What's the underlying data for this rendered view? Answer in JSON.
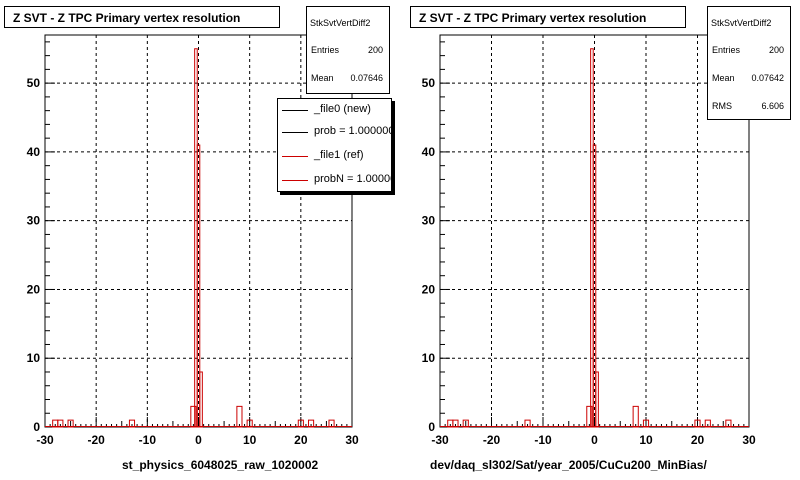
{
  "chart_data": [
    {
      "type": "histogram",
      "title": "Z SVT - Z TPC Primary vertex resolution",
      "xlabel": "st_physics_6048025_raw_1020002",
      "xlim": [
        -30,
        30
      ],
      "ylim": [
        0,
        57
      ],
      "xticks": [
        -30,
        -20,
        -10,
        0,
        10,
        20,
        30
      ],
      "yticks": [
        0,
        10,
        20,
        30,
        40,
        50
      ],
      "grid": true,
      "bin_width": 1,
      "series": [
        {
          "name": "_file1 (ref)",
          "color": "#cc0000",
          "bins": [
            {
              "x": -28,
              "y": 1
            },
            {
              "x": -27,
              "y": 1
            },
            {
              "x": -25,
              "y": 1
            },
            {
              "x": -13,
              "y": 1
            },
            {
              "x": -1,
              "y": 3
            },
            {
              "x": -0.5,
              "y": 55
            },
            {
              "x": 0,
              "y": 41
            },
            {
              "x": 0.5,
              "y": 8
            },
            {
              "x": 8,
              "y": 3
            },
            {
              "x": 10,
              "y": 1
            },
            {
              "x": 20,
              "y": 1
            },
            {
              "x": 22,
              "y": 1
            },
            {
              "x": 26,
              "y": 1
            }
          ]
        }
      ],
      "stats": {
        "name": "StkSvtVertDiff2",
        "entries_label": "Entries",
        "entries": "200",
        "mean_label": "Mean",
        "mean": "0.07646"
      },
      "legend": [
        {
          "label": "_file0 (new)",
          "color": "#000000"
        },
        {
          "label": "prob = 1.000000",
          "color": "#000000"
        },
        {
          "label": "_file1 (ref)",
          "color": "#cc0000"
        },
        {
          "label": "probN = 1.000000",
          "color": "#cc0000"
        }
      ]
    },
    {
      "type": "histogram",
      "title": "Z SVT - Z TPC Primary vertex resolution",
      "xlabel": "dev/daq_sl302/Sat/year_2005/CuCu200_MinBias/",
      "xlim": [
        -30,
        30
      ],
      "ylim": [
        0,
        57
      ],
      "xticks": [
        -30,
        -20,
        -10,
        0,
        10,
        20,
        30
      ],
      "yticks": [
        0,
        10,
        20,
        30,
        40,
        50
      ],
      "grid": true,
      "bin_width": 1,
      "series": [
        {
          "name": "",
          "color": "#cc0000",
          "bins": [
            {
              "x": -28,
              "y": 1
            },
            {
              "x": -27,
              "y": 1
            },
            {
              "x": -25,
              "y": 1
            },
            {
              "x": -13,
              "y": 1
            },
            {
              "x": -1,
              "y": 3
            },
            {
              "x": -0.5,
              "y": 55
            },
            {
              "x": 0,
              "y": 41
            },
            {
              "x": 0.5,
              "y": 8
            },
            {
              "x": 8,
              "y": 3
            },
            {
              "x": 10,
              "y": 1
            },
            {
              "x": 20,
              "y": 1
            },
            {
              "x": 22,
              "y": 1
            },
            {
              "x": 26,
              "y": 1
            }
          ]
        }
      ],
      "stats": {
        "name": "StkSvtVertDiff2",
        "entries_label": "Entries",
        "entries": "200",
        "mean_label": "Mean",
        "mean": "0.07642",
        "rms_label": "RMS",
        "rms": "6.606"
      }
    }
  ]
}
